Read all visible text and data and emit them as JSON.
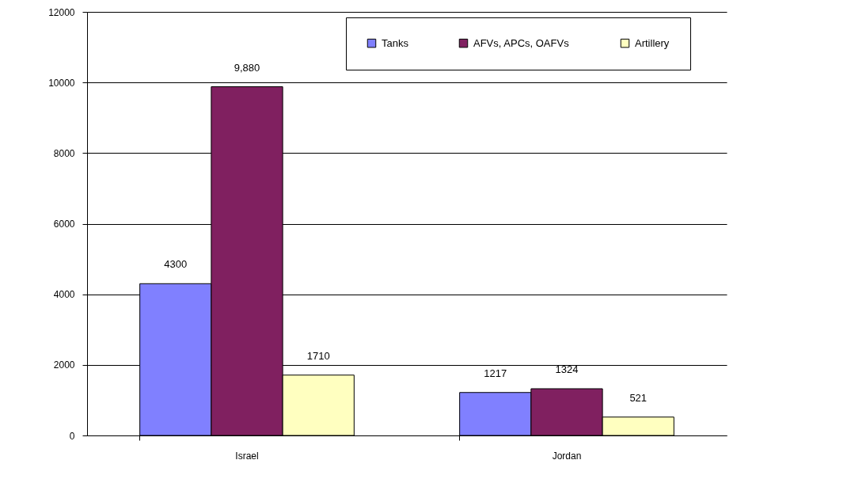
{
  "chart_data": {
    "type": "bar",
    "categories": [
      "Israel",
      "Jordan"
    ],
    "series": [
      {
        "name": "Tanks",
        "color": "#8080ff",
        "values": [
          4300,
          1217
        ],
        "value_labels": [
          "4300",
          "1217"
        ]
      },
      {
        "name": "AFVs, APCs, OAFVs",
        "color": "#802060",
        "values": [
          9880,
          1324
        ],
        "value_labels": [
          "9,880",
          "1324"
        ]
      },
      {
        "name": "Artillery",
        "color": "#ffffc0",
        "values": [
          1710,
          521
        ],
        "value_labels": [
          "1710",
          "521"
        ]
      }
    ],
    "ylim": [
      0,
      12000
    ],
    "yticks": [
      0,
      2000,
      4000,
      6000,
      8000,
      10000,
      12000
    ],
    "grid": "y",
    "legend": "top right"
  }
}
